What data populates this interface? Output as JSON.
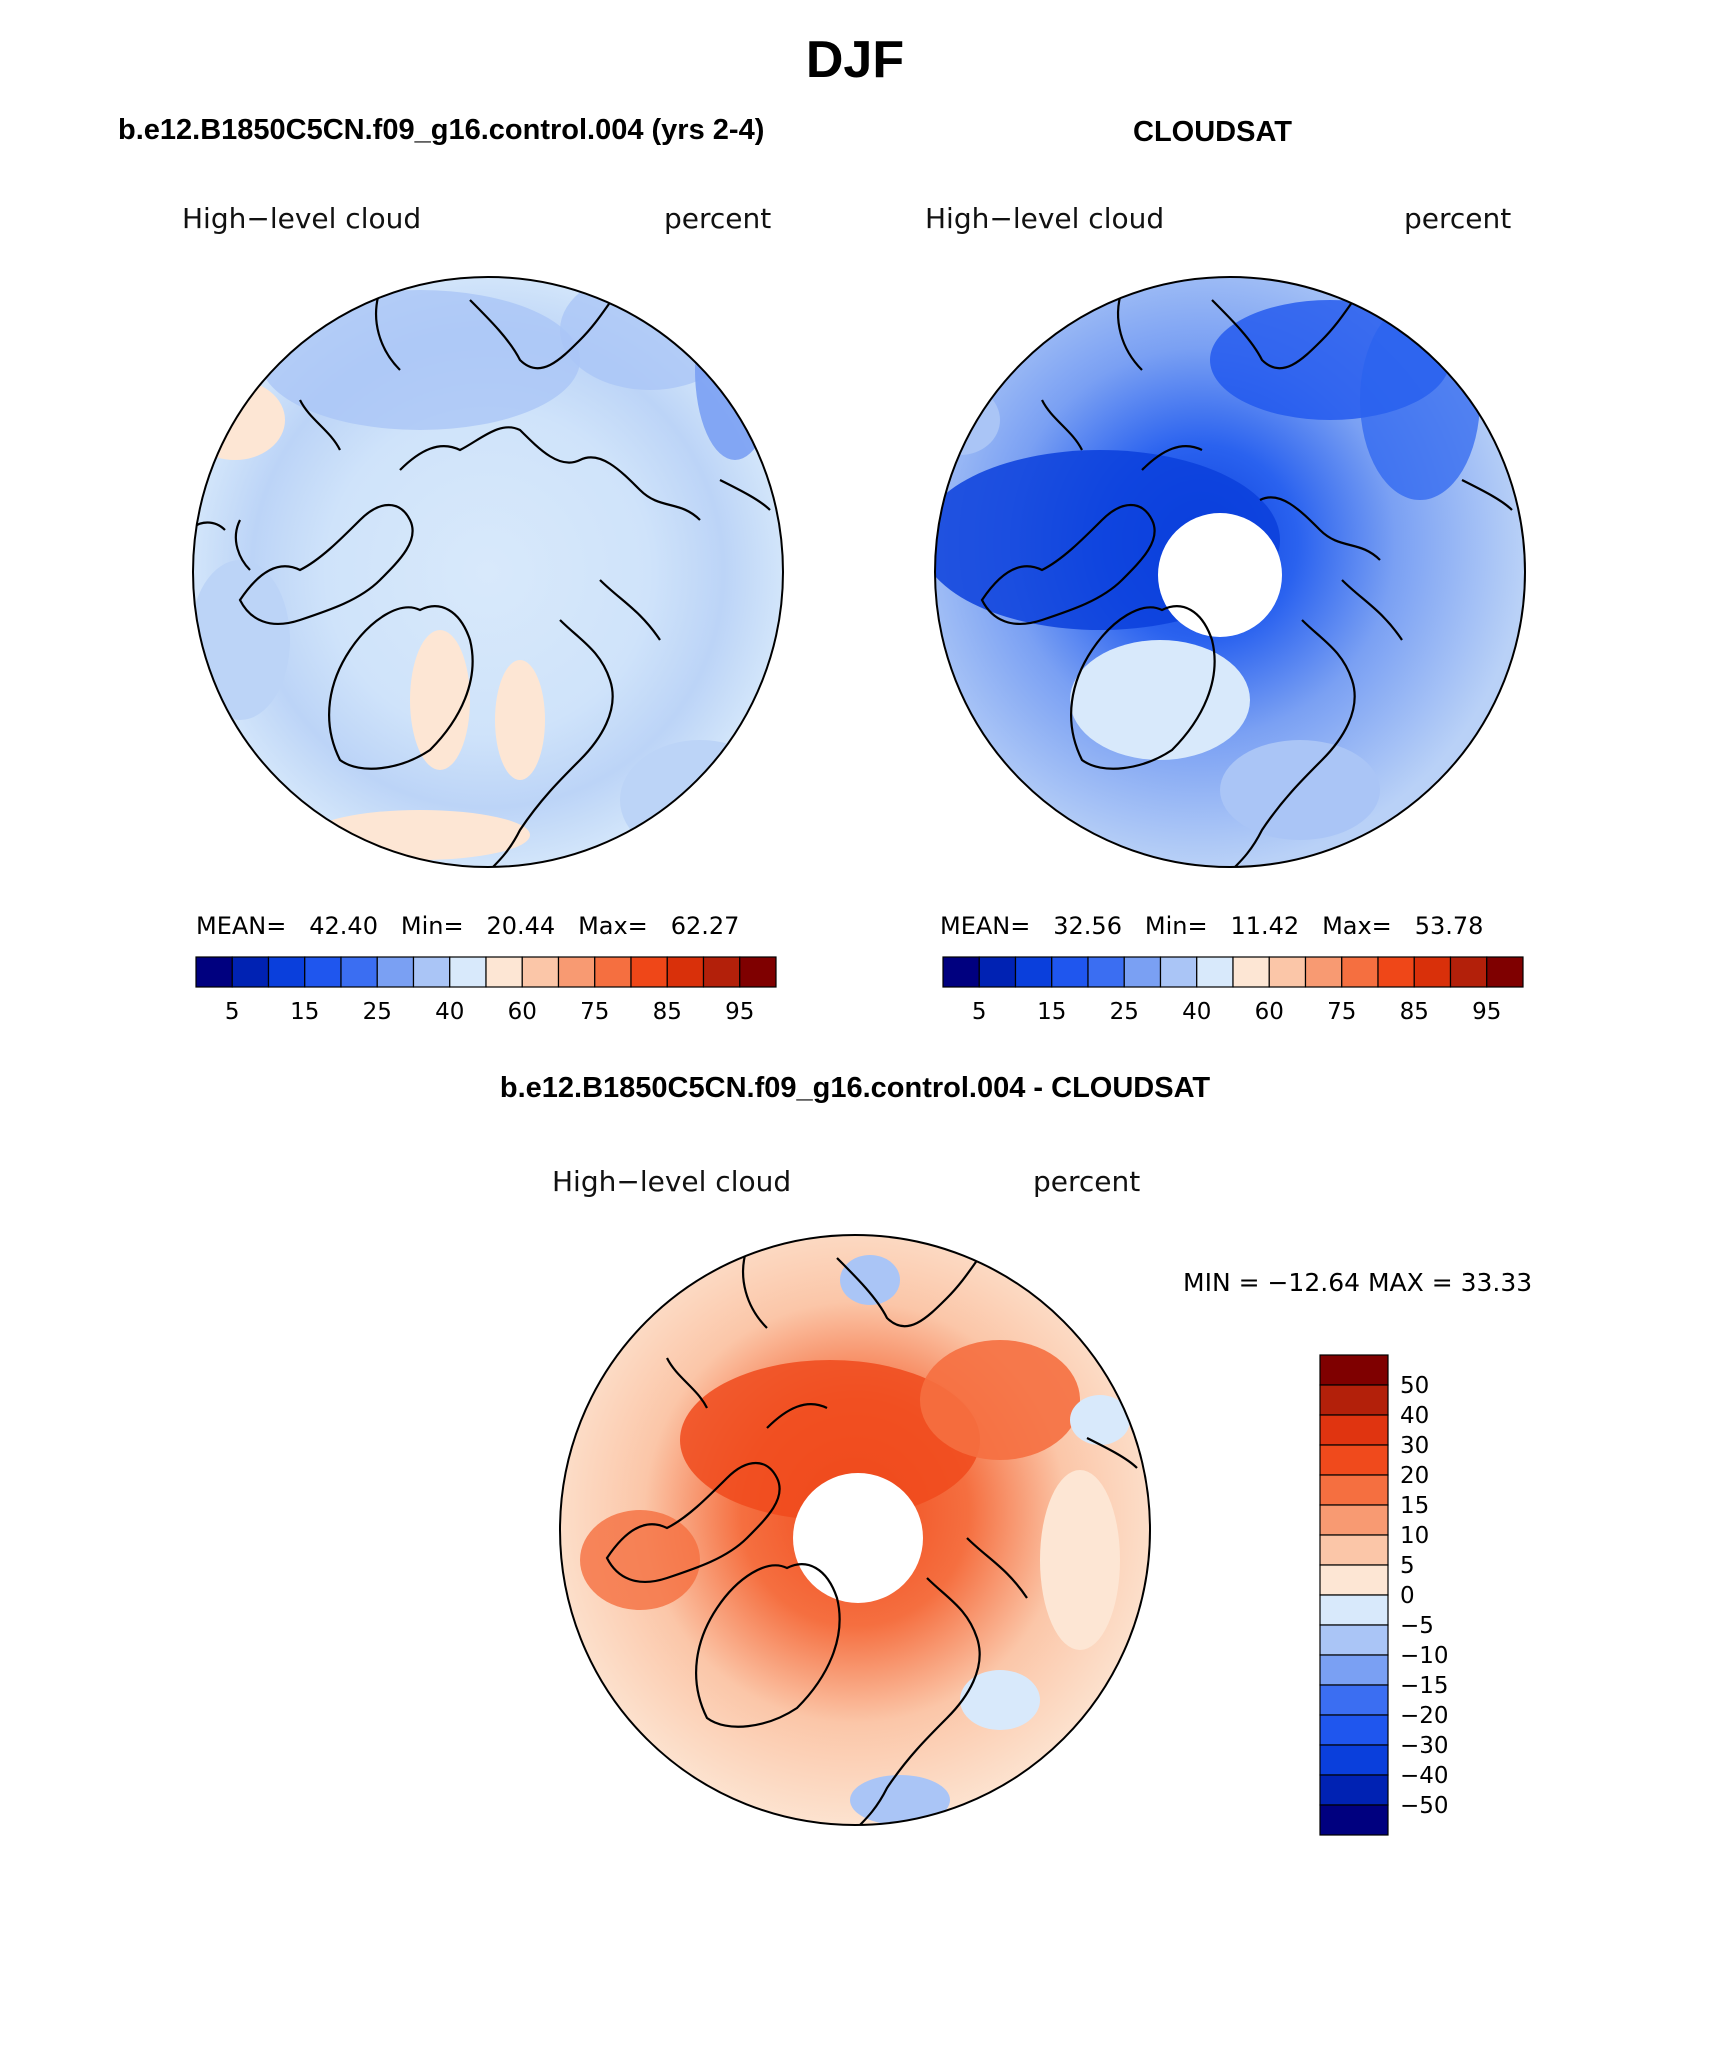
{
  "figure": {
    "season": "DJF"
  },
  "panels": {
    "left": {
      "title": "b.e12.B1850C5CN.f09_g16.control.004 (yrs 2-4)",
      "variable": "High−level cloud",
      "units": "percent",
      "stats": {
        "mean_label": "MEAN=",
        "mean": "42.40",
        "min_label": "Min=",
        "min": "20.44",
        "max_label": "Max=",
        "max": "62.27"
      }
    },
    "right": {
      "title": "CLOUDSAT",
      "variable": "High−level cloud",
      "units": "percent",
      "stats": {
        "mean_label": "MEAN=",
        "mean": "32.56",
        "min_label": "Min=",
        "min": "11.42",
        "max_label": "Max=",
        "max": "53.78"
      }
    },
    "diff": {
      "title": "b.e12.B1850C5CN.f09_g16.control.004 - CLOUDSAT",
      "variable": "High−level cloud",
      "units": "percent",
      "minmax_text": "MIN = −12.64 MAX =   33.33"
    }
  },
  "colorbars": {
    "abs_labels": [
      "5",
      "15",
      "25",
      "40",
      "60",
      "75",
      "85",
      "95"
    ],
    "abs_colors": [
      "#00007f",
      "#0022b3",
      "#0a3fdc",
      "#1f56ee",
      "#3b6ef2",
      "#7aa0f3",
      "#aac5f6",
      "#d8e9fb",
      "#fde6d4",
      "#fbc6a8",
      "#f89a72",
      "#f56f40",
      "#ef4718",
      "#d9300a",
      "#b3200a",
      "#7f0000"
    ],
    "diff_labels": [
      "50",
      "40",
      "30",
      "20",
      "15",
      "10",
      "5",
      "0",
      "−5",
      "−10",
      "−15",
      "−20",
      "−30",
      "−40",
      "−50"
    ],
    "diff_colors_top_to_bottom": [
      "#7f0000",
      "#b3200a",
      "#e03410",
      "#f04a1c",
      "#f56f40",
      "#f89a72",
      "#fbc6a8",
      "#fde6d4",
      "#d8e9fb",
      "#aac5f6",
      "#7aa0f3",
      "#3b6ef2",
      "#1f56ee",
      "#0a3fdc",
      "#0022b3",
      "#00007f"
    ]
  },
  "chart_data": [
    {
      "type": "heatmap",
      "title": "b.e12.B1850C5CN.f09_g16.control.004 (yrs 2-4)",
      "subtitle": "High−level cloud",
      "units": "percent",
      "projection": "north polar stereographic",
      "mean": 42.4,
      "min": 20.44,
      "max": 62.27,
      "colorbar_levels": [
        5,
        10,
        15,
        20,
        25,
        30,
        40,
        50,
        60,
        70,
        75,
        80,
        85,
        90,
        95
      ],
      "dominant_range": [
        25,
        60
      ]
    },
    {
      "type": "heatmap",
      "title": "CLOUDSAT",
      "subtitle": "High−level cloud",
      "units": "percent",
      "projection": "north polar stereographic",
      "mean": 32.56,
      "min": 11.42,
      "max": 53.78,
      "colorbar_levels": [
        5,
        10,
        15,
        20,
        25,
        30,
        40,
        50,
        60,
        70,
        75,
        80,
        85,
        90,
        95
      ],
      "dominant_range": [
        10,
        40
      ],
      "missing_data": "polar cap"
    },
    {
      "type": "heatmap",
      "title": "b.e12.B1850C5CN.f09_g16.control.004 - CLOUDSAT",
      "subtitle": "High−level cloud",
      "units": "percent",
      "projection": "north polar stereographic",
      "min": -12.64,
      "max": 33.33,
      "colorbar_levels": [
        -50,
        -40,
        -30,
        -20,
        -15,
        -10,
        -5,
        0,
        5,
        10,
        15,
        20,
        30,
        40,
        50
      ],
      "dominant_range": [
        0,
        30
      ],
      "missing_data": "polar cap"
    }
  ]
}
